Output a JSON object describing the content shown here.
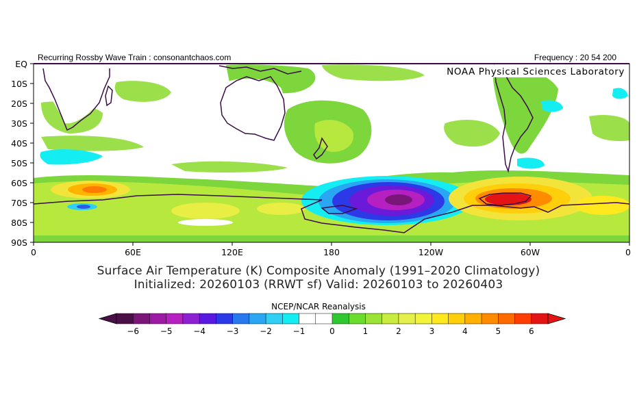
{
  "header": {
    "left_text": "Recurring Rossby Wave Train : consonantchaos.com",
    "right_text": "Frequency : 20 54 200",
    "credit": "NOAA Physical Sciences Laboratory"
  },
  "axes": {
    "lat_labels": [
      "EQ",
      "10S",
      "20S",
      "30S",
      "40S",
      "50S",
      "60S",
      "70S",
      "80S",
      "90S"
    ],
    "lon_labels": [
      "0",
      "60E",
      "120E",
      "180",
      "120W",
      "60W",
      "0"
    ]
  },
  "caption": {
    "line1": "Surface Air Temperature (K) Composite Anomaly (1991–2020 Climatology)",
    "line2": "Initialized: 20260103 (RRWT sf) Valid: 20260103 to 20260403"
  },
  "colorbar": {
    "title": "NCEP/NCAR Reanalysis",
    "tick_labels": [
      "−6",
      "−5",
      "−4",
      "−3",
      "−2",
      "−1",
      "0",
      "1",
      "2",
      "3",
      "4",
      "5",
      "6"
    ],
    "colors": [
      "#4b0f48",
      "#7a167a",
      "#9d1aa6",
      "#b61fc0",
      "#8c20d2",
      "#5a19e0",
      "#2b3ae6",
      "#2878f0",
      "#2aa7f2",
      "#2fd0f4",
      "#14eef2",
      "#ffffff",
      "#ffffff",
      "#30c830",
      "#6cdc2f",
      "#9be436",
      "#c9ec3f",
      "#e5f04a",
      "#f2f43a",
      "#ffe81e",
      "#ffcf0c",
      "#ffb000",
      "#ff8c00",
      "#ff6a00",
      "#ff3d00",
      "#e51414"
    ]
  },
  "map_colors": {
    "light_green": "#9be04a",
    "green": "#5cc93a",
    "yellow_green": "#c9ec3f",
    "yellow": "#f2e43a",
    "orange": "#ffa800",
    "red": "#d81a0a",
    "cyan": "#14eef2",
    "blue": "#2a5ae8",
    "purple": "#9a1cc0",
    "dark_purple": "#5a0e6e",
    "coast": "#3c0a46"
  }
}
